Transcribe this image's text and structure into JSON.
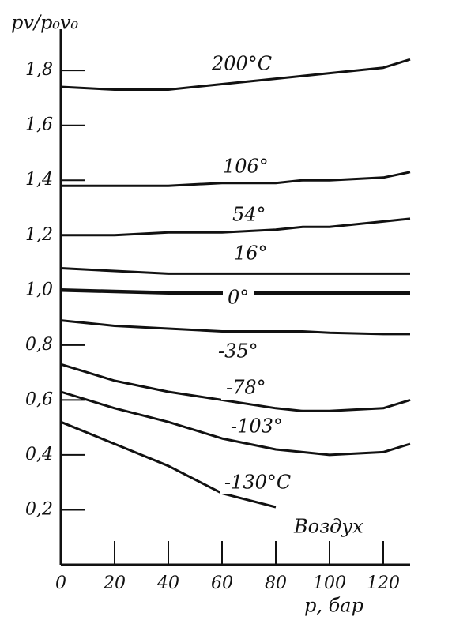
{
  "chart_data": {
    "type": "line",
    "y_label": "pv/p₀v₀",
    "x_label": "p, бар",
    "annotation": "Воздух",
    "x": [
      0,
      20,
      40,
      60,
      80,
      90,
      100,
      120,
      130
    ],
    "xlim": [
      0,
      130
    ],
    "ylim": [
      0,
      1.95
    ],
    "xticks": [
      0,
      20,
      40,
      60,
      80,
      100,
      120
    ],
    "yticks": [
      {
        "value": 0.2,
        "label": "0,2"
      },
      {
        "value": 0.4,
        "label": "0,4"
      },
      {
        "value": 0.6,
        "label": "0,6"
      },
      {
        "value": 0.8,
        "label": "0,8"
      },
      {
        "value": 1.0,
        "label": "1,0"
      },
      {
        "value": 1.2,
        "label": "1,2"
      },
      {
        "value": 1.4,
        "label": "1,4"
      },
      {
        "value": 1.6,
        "label": "1,6"
      },
      {
        "value": 1.8,
        "label": "1,8"
      }
    ],
    "series": [
      {
        "name": "200°C",
        "color": "#111111",
        "values": [
          1.74,
          1.73,
          1.73,
          1.75,
          1.77,
          1.78,
          1.79,
          1.81,
          1.84
        ]
      },
      {
        "name": "106°",
        "color": "#111111",
        "values": [
          1.38,
          1.38,
          1.38,
          1.39,
          1.39,
          1.4,
          1.4,
          1.41,
          1.43
        ]
      },
      {
        "name": "54°",
        "color": "#111111",
        "values": [
          1.2,
          1.2,
          1.21,
          1.21,
          1.22,
          1.23,
          1.23,
          1.25,
          1.26
        ]
      },
      {
        "name": "16°",
        "color": "#111111",
        "values": [
          1.08,
          1.07,
          1.06,
          1.06,
          1.06,
          1.06,
          1.06,
          1.06,
          1.06
        ]
      },
      {
        "name": "0°",
        "color": "#111111",
        "values": [
          1.0,
          0.995,
          0.99,
          0.99,
          0.99,
          0.99,
          0.99,
          0.99,
          0.99
        ]
      },
      {
        "name": "-35°",
        "color": "#111111",
        "values": [
          0.89,
          0.87,
          0.86,
          0.85,
          0.85,
          0.85,
          0.845,
          0.84,
          0.84
        ]
      },
      {
        "name": "-78°",
        "color": "#111111",
        "values": [
          0.73,
          0.67,
          0.63,
          0.6,
          0.57,
          0.56,
          0.56,
          0.57,
          0.6
        ]
      },
      {
        "name": "-103°",
        "color": "#111111",
        "values": [
          0.63,
          0.57,
          0.52,
          0.46,
          0.42,
          0.41,
          0.4,
          0.41,
          0.44
        ]
      },
      {
        "name": "-130°C",
        "color": "#111111",
        "values": [
          0.52,
          0.44,
          0.36,
          0.26,
          0.21,
          null,
          null,
          null,
          null
        ]
      }
    ]
  }
}
